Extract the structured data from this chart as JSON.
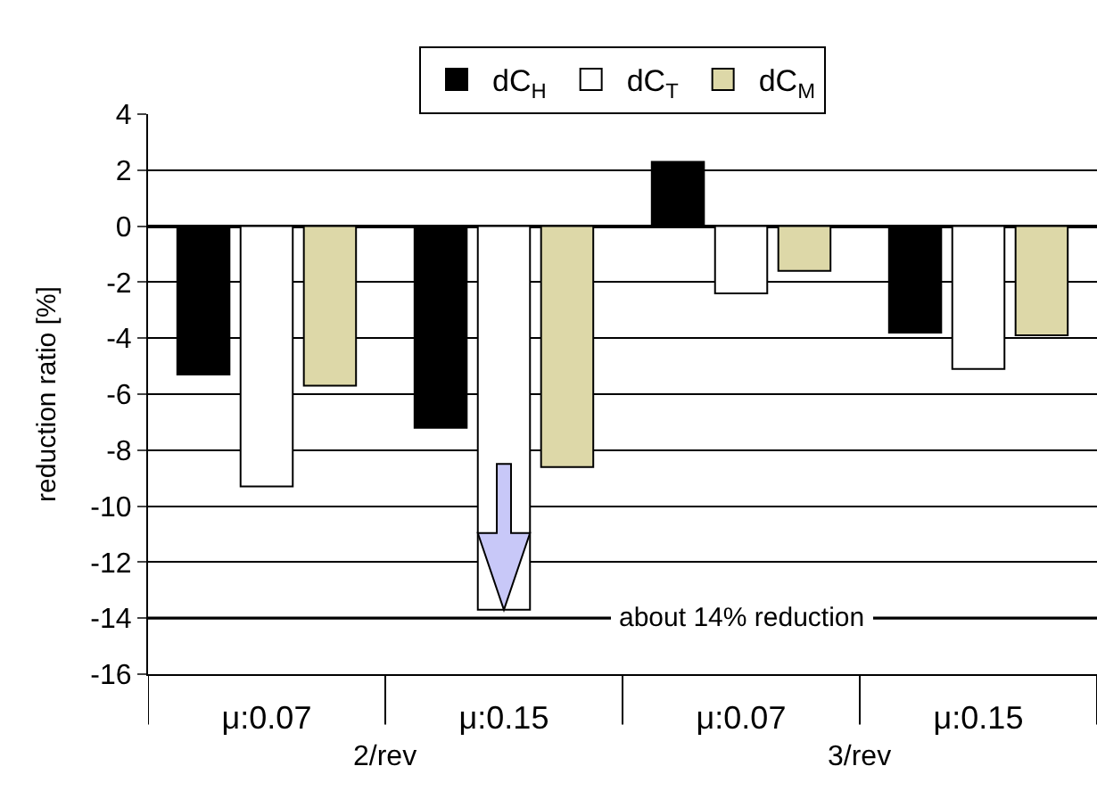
{
  "chart_data": {
    "type": "bar",
    "ylabel": "reduction ratio [%]",
    "categories": [
      "μ:0.07",
      "μ:0.15",
      "μ:0.07",
      "μ:0.15"
    ],
    "series": [
      {
        "name": "dC$_{H}$",
        "color": "#000000",
        "values": [
          -5.3,
          -7.2,
          2.3,
          -3.8
        ]
      },
      {
        "name": "dC$_{T}$",
        "color": "#ffffff",
        "values": [
          -9.3,
          -13.7,
          -2.4,
          -5.1
        ]
      },
      {
        "name": "dC$_{M}$",
        "color": "#ddd8a8",
        "values": [
          -5.7,
          -8.6,
          -1.6,
          -3.9
        ]
      }
    ],
    "ylim": [
      -16,
      4
    ],
    "yticks": [
      -16,
      -14,
      -12,
      -10,
      -8,
      -6,
      -4,
      -2,
      0,
      2,
      4
    ],
    "grid": "y",
    "legend": "top",
    "ref_lines": [
      {
        "axis": "y",
        "value": -14,
        "label": "about 14% reduction"
      }
    ],
    "annotations": [
      "2/rev",
      "3/rev"
    ]
  }
}
